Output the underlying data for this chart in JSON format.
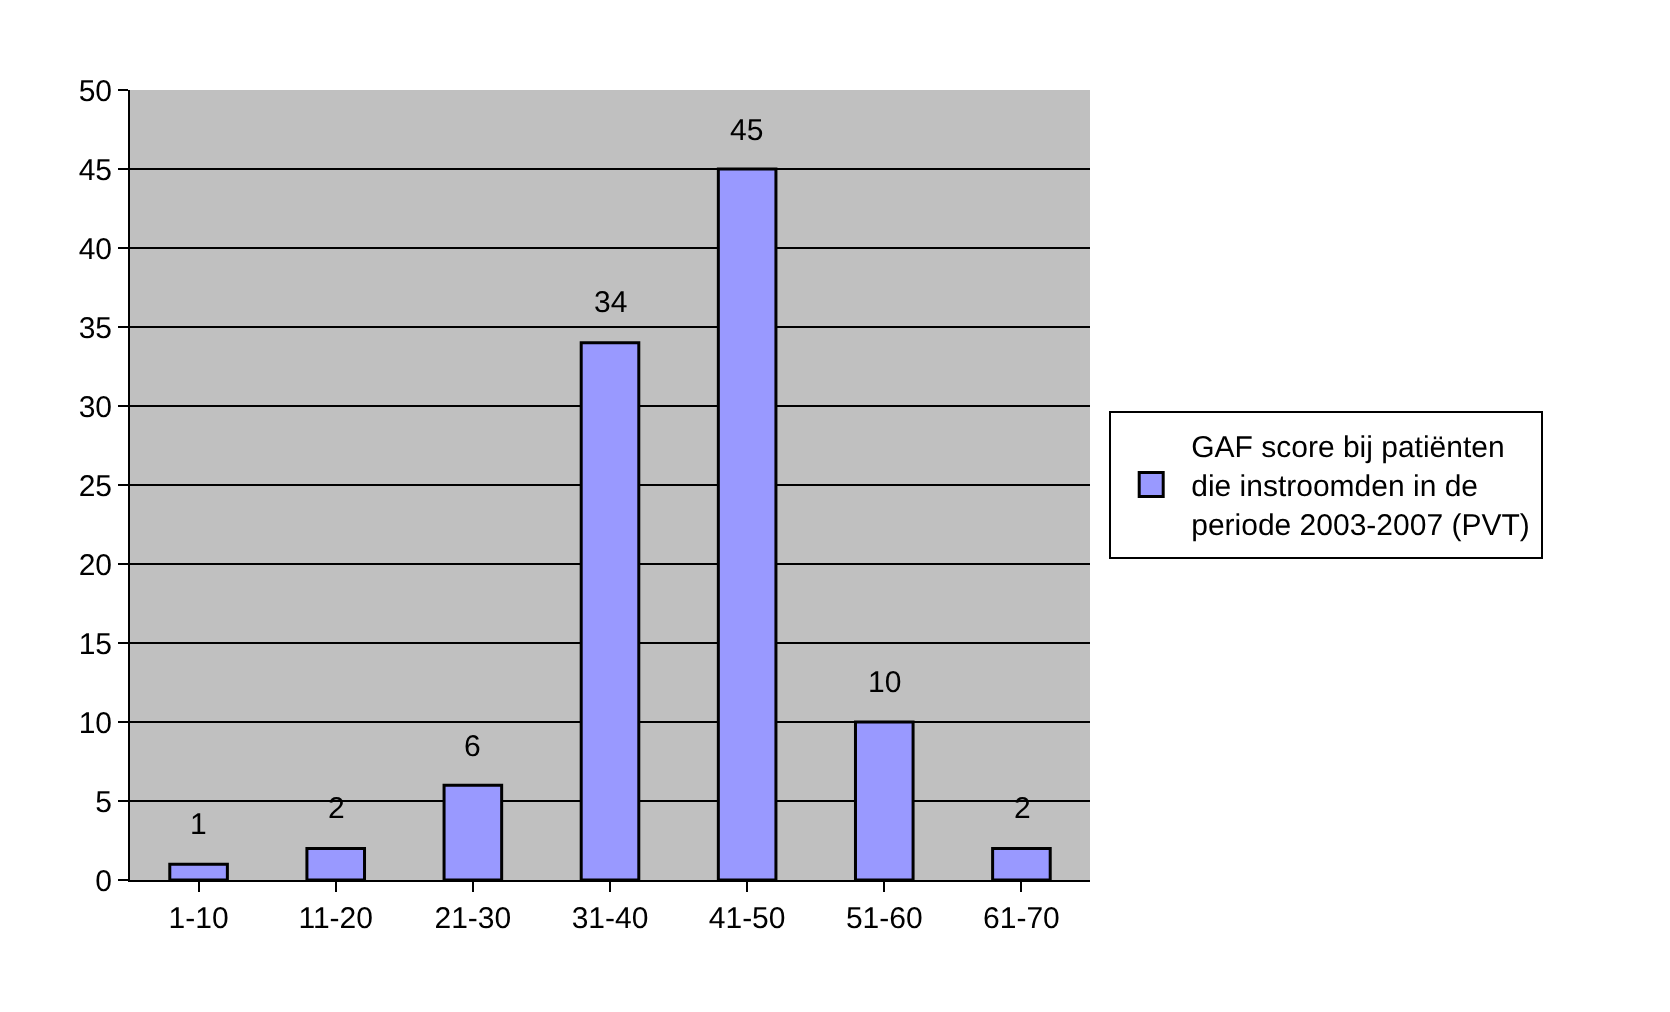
{
  "chart_data": {
    "type": "bar",
    "categories": [
      "1-10",
      "11-20",
      "21-30",
      "31-40",
      "41-50",
      "51-60",
      "61-70"
    ],
    "series": [
      {
        "name": "GAF score bij patiënten die instroomden in de periode 2003-2007 (PVT)",
        "color": "#9999ff",
        "values": [
          1,
          2,
          6,
          34,
          45,
          10,
          2
        ]
      }
    ],
    "ylim": [
      0,
      50
    ],
    "yticks": [
      0,
      5,
      10,
      15,
      20,
      25,
      30,
      35,
      40,
      45,
      50
    ],
    "grid": "y",
    "legend": "right",
    "data_labels": true
  }
}
